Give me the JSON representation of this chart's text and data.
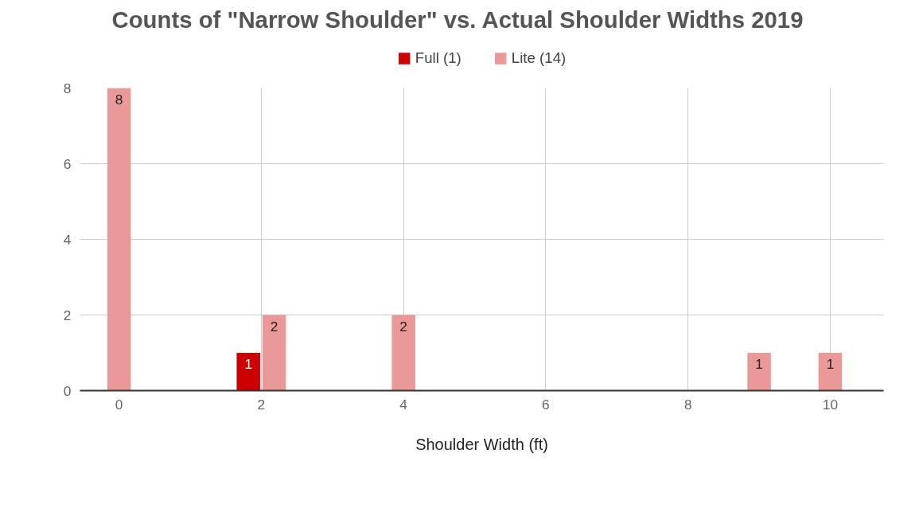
{
  "chart_data": {
    "type": "bar",
    "title": "Counts of \"Narrow Shoulder\" vs. Actual Shoulder Widths 2019",
    "xlabel": "Shoulder Width (ft)",
    "x": [
      0,
      2,
      4,
      9,
      10
    ],
    "series": [
      {
        "name": "Full (1)",
        "color": "#cc0000",
        "values": [
          null,
          1,
          null,
          null,
          null
        ]
      },
      {
        "name": "Lite (14)",
        "color": "#ea9999",
        "values": [
          8,
          2,
          2,
          1,
          1
        ]
      }
    ],
    "xlim": [
      -0.55,
      10.75
    ],
    "xticks": [
      0,
      2,
      4,
      6,
      8,
      10
    ],
    "ylim": [
      0,
      8
    ],
    "yticks": [
      0,
      2,
      4,
      6,
      8
    ],
    "grid": true,
    "legend": "top",
    "data_labels": true
  }
}
